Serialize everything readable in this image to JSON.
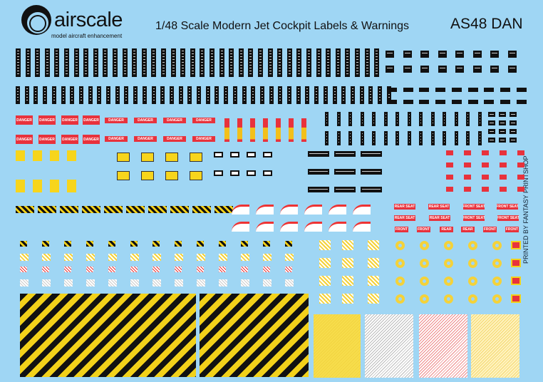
{
  "header": {
    "brand": "airscale",
    "tagline": "model aircraft enhancement",
    "title": "1/48 Scale Modern Jet Cockpit Labels & Warnings",
    "product_code": "AS48 DAN"
  },
  "side_text": "PRINTED BY FANTASY PRINTSHOP",
  "decals": {
    "danger_label": "DANGER",
    "seat_labels": [
      "REAR SEAT",
      "REAR SEAT",
      "FRONT SEAT",
      "FRONT SEAT",
      "REAR SEAT",
      "REAR SEAT",
      "FRONT SEAT",
      "FRONT SEAT"
    ],
    "small_labels": [
      "FRONT",
      "FRONT",
      "REAR",
      "REAR",
      "FRONT",
      "FRONT"
    ]
  },
  "colors": {
    "background": "#9fd6f4",
    "warning_red": "#e8323c",
    "warning_yellow": "#f7d51c"
  }
}
